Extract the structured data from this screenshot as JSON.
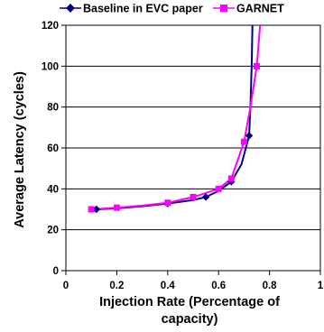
{
  "chart_data": {
    "type": "line",
    "title": "",
    "xlabel": [
      "Injection Rate (Percentage of",
      "capacity)"
    ],
    "ylabel": "Average Latency (cycles)",
    "xlim": [
      0,
      1
    ],
    "ylim": [
      0,
      120
    ],
    "x_ticks": [
      0,
      0.2,
      0.4,
      0.6,
      0.8,
      1
    ],
    "y_ticks": [
      0,
      20,
      40,
      60,
      80,
      100,
      120
    ],
    "x_tick_labels": [
      "0",
      "0.2",
      "0.4",
      "0.6",
      "0.8",
      "1"
    ],
    "y_tick_labels": [
      "0",
      "20",
      "40",
      "60",
      "80",
      "100",
      "120"
    ],
    "grid": "horizontal",
    "legend_placement": "top",
    "series": [
      {
        "name": "Baseline in EVC paper",
        "color": "#000080",
        "marker": "diamond",
        "points": [
          [
            0.12,
            30
          ],
          [
            0.2,
            30.5
          ],
          [
            0.3,
            31.5
          ],
          [
            0.4,
            32.8
          ],
          [
            0.5,
            34.5
          ],
          [
            0.55,
            36
          ],
          [
            0.6,
            39
          ],
          [
            0.65,
            43.5
          ],
          [
            0.69,
            52
          ],
          [
            0.72,
            66
          ],
          [
            0.725,
            80
          ],
          [
            0.73,
            100
          ],
          [
            0.733,
            120
          ]
        ]
      },
      {
        "name": "GARNET",
        "color": "#ff00ff",
        "marker": "square",
        "points": [
          [
            0.1,
            30
          ],
          [
            0.2,
            30.8
          ],
          [
            0.3,
            31.8
          ],
          [
            0.4,
            33.2
          ],
          [
            0.5,
            36
          ],
          [
            0.6,
            40
          ],
          [
            0.65,
            45
          ],
          [
            0.7,
            63
          ],
          [
            0.725,
            80
          ],
          [
            0.75,
            100
          ],
          [
            0.76,
            115
          ],
          [
            0.763,
            120
          ]
        ]
      }
    ],
    "marker_points": {
      "Baseline in EVC paper": [
        0.12,
        0.4,
        0.55,
        0.65,
        0.72
      ],
      "GARNET": [
        0.1,
        0.2,
        0.4,
        0.5,
        0.6,
        0.65,
        0.7,
        0.75
      ]
    }
  }
}
